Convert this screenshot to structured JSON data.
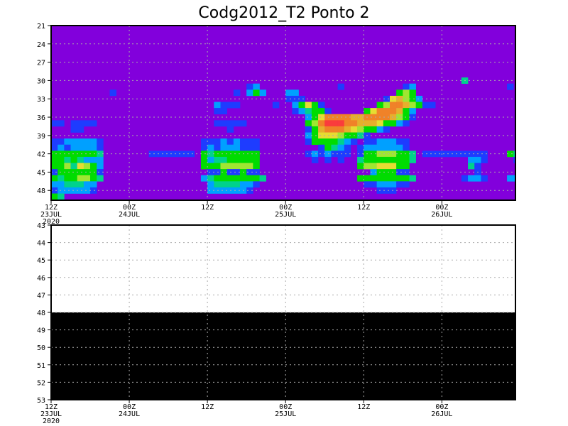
{
  "chart_data": [
    {
      "type": "heatmap",
      "title": "Codg2012_T2 Ponto 2",
      "x_start": "2020-07-23 12Z",
      "x_end": "2020-07-26 11Z",
      "x_step_hours": 1,
      "x_ticks": [
        {
          "hours_from_start": 0,
          "lines": [
            "12Z",
            "23JUL",
            "2020"
          ]
        },
        {
          "hours_from_start": 12,
          "lines": [
            "00Z",
            "24JUL"
          ]
        },
        {
          "hours_from_start": 24,
          "lines": [
            "12Z"
          ]
        },
        {
          "hours_from_start": 36,
          "lines": [
            "00Z",
            "25JUL"
          ]
        },
        {
          "hours_from_start": 48,
          "lines": [
            "12Z"
          ]
        },
        {
          "hours_from_start": 60,
          "lines": [
            "00Z",
            "26JUL"
          ]
        }
      ],
      "ylim": [
        21,
        49.6
      ],
      "y_ticks": [
        21,
        24,
        27,
        30,
        33,
        36,
        39,
        42,
        45,
        48
      ],
      "y_inverted": true,
      "grid": true,
      "background_color": "#8200dc",
      "level_colors": [
        "#8200dc",
        "#1e3cff",
        "#00a0ff",
        "#00d28c",
        "#00dc00",
        "#a0e632",
        "#e6dc32",
        "#e6af2d",
        "#f08228",
        "#fa3c3c"
      ],
      "row_levels_start": 21,
      "rows": [
        "000000000000000000000000000000000000000000000000000000000000000000000000",
        "000000000000000000000000000000000000000000000000000000000000000000000000",
        "000000000000000000000000000000000000000000000000000000000000000000000000",
        "000000000000000000000000000000000000000000000000000000000000000000000000",
        "000000000000000000000000000000000000000000000000000000000000000000000000",
        "000000000000000000000000000000000000000000000000000000000000000000000000",
        "000000000000000000000000000000000000000000000000000000000000000000000000",
        "000000000000000000000000000000000000000000000000000000000000000000000000",
        "000000000000000000000000000000000000000000000000000000000000000000000000",
        "000000000000000000000000000000000000000000000000000000000000000300000000",
        "000000000000000000000000000000120000000000001000000000120000000000000010",
        "000000000100000000000000000010242000220000000000000004540000000000000000",
        "000000000000000000000000000000000000111000000000000167542000000000000000",
        "000000000000000000000000021110000010024641000000004588754110000000000000",
        "000000000000000000000000011000000000012344100000468887420000000000000000",
        "000000000000000000000000000000000000000246888877888875410000000000000000",
        "110111100000000000000000011111000000000458999887776442100000000000000000",
        "000110000000000000000000000100000000000147888765442100000000000000000000",
        "000000000000000000000000000000000000000246665443100000000000000000000000",
        "112222210000000000000001112121110000000144443210112221100000000000000000",
        "121222210000000000000001212221110000000001432101222222100000000000000000",
        "444444430000000111111104344444440000000121211101445554430111111111100043",
        "443432220000000000000004233444440000000010101003444444430000000022100001",
        "445365420000000000000004445555540000000000000004556664400000000031000000",
        "144444410000000000000000114114110000000000000000024441100000000001000000",
        "434455430000000000000002344444443000000000000004444444430000000122100022",
        "223332200000000000000000233332210000000000000000112221100000000000000000",
        "122222100000000000000000222222100000000000000000001110000000000000000000",
        "430000000000000000000000000000000000000000000000000000000000000000000000"
      ]
    },
    {
      "type": "area",
      "x_start": "2020-07-23 12Z",
      "x_end": "2020-07-26 11Z",
      "x_ticks": [
        {
          "hours_from_start": 0,
          "lines": [
            "12Z",
            "23JUL",
            "2020"
          ]
        },
        {
          "hours_from_start": 12,
          "lines": [
            "00Z",
            "24JUL"
          ]
        },
        {
          "hours_from_start": 24,
          "lines": [
            "12Z"
          ]
        },
        {
          "hours_from_start": 36,
          "lines": [
            "00Z",
            "25JUL"
          ]
        },
        {
          "hours_from_start": 48,
          "lines": [
            "12Z"
          ]
        },
        {
          "hours_from_start": 60,
          "lines": [
            "00Z",
            "26JUL"
          ]
        }
      ],
      "ylim": [
        43,
        53
      ],
      "y_ticks": [
        43,
        44,
        45,
        46,
        47,
        48,
        49,
        50,
        51,
        52,
        53
      ],
      "y_inverted": true,
      "grid": true,
      "fill_from": 48,
      "fill_to": 53,
      "fill_color": "#000000",
      "background_color": "#ffffff"
    }
  ]
}
